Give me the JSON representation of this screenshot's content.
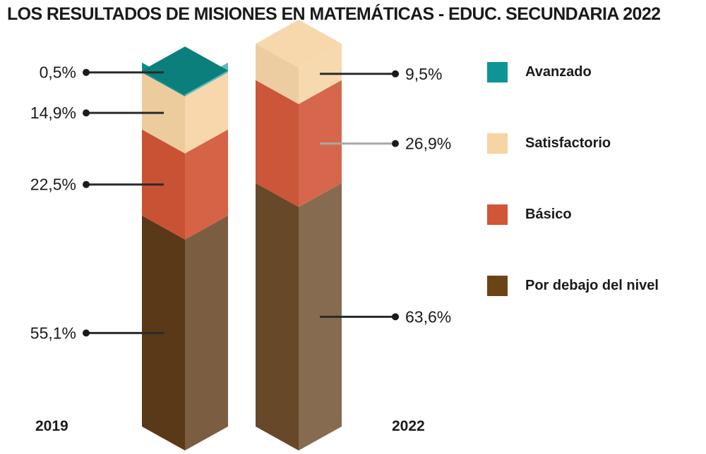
{
  "title": "LOS RESULTADOS DE MISIONES EN MATEMÁTICAS - EDUC. SECUNDARIA 2022",
  "colors": {
    "avanzado": "#0E9494",
    "satisfactorio": "#F6D4A4",
    "basico": "#D25536",
    "por_debajo": "#5E3B19"
  },
  "legend": [
    {
      "label": "Avanzado",
      "color": "#0E9494"
    },
    {
      "label": "Satisfactorio",
      "color": "#F6D4A4"
    },
    {
      "label": "Básico",
      "color": "#D25536"
    },
    {
      "label": "Por debajo del nivel",
      "color": "#6B4416"
    }
  ],
  "years": [
    "2019",
    "2022"
  ],
  "chart_data": {
    "type": "bar",
    "stacked": true,
    "categories": [
      "2019",
      "2022"
    ],
    "series": [
      {
        "name": "Por debajo del nivel",
        "values": [
          55.1,
          63.6
        ],
        "labels": [
          "55,1%",
          "63,6%"
        ]
      },
      {
        "name": "Básico",
        "values": [
          22.5,
          26.9
        ],
        "labels": [
          "22,5%",
          "26,9%"
        ]
      },
      {
        "name": "Satisfactorio",
        "values": [
          14.9,
          9.5
        ],
        "labels": [
          "14,9%",
          "9,5%"
        ]
      },
      {
        "name": "Avanzado",
        "values": [
          0.5,
          null
        ],
        "labels": [
          "0,5%",
          ""
        ]
      }
    ],
    "legend_position": "right"
  }
}
